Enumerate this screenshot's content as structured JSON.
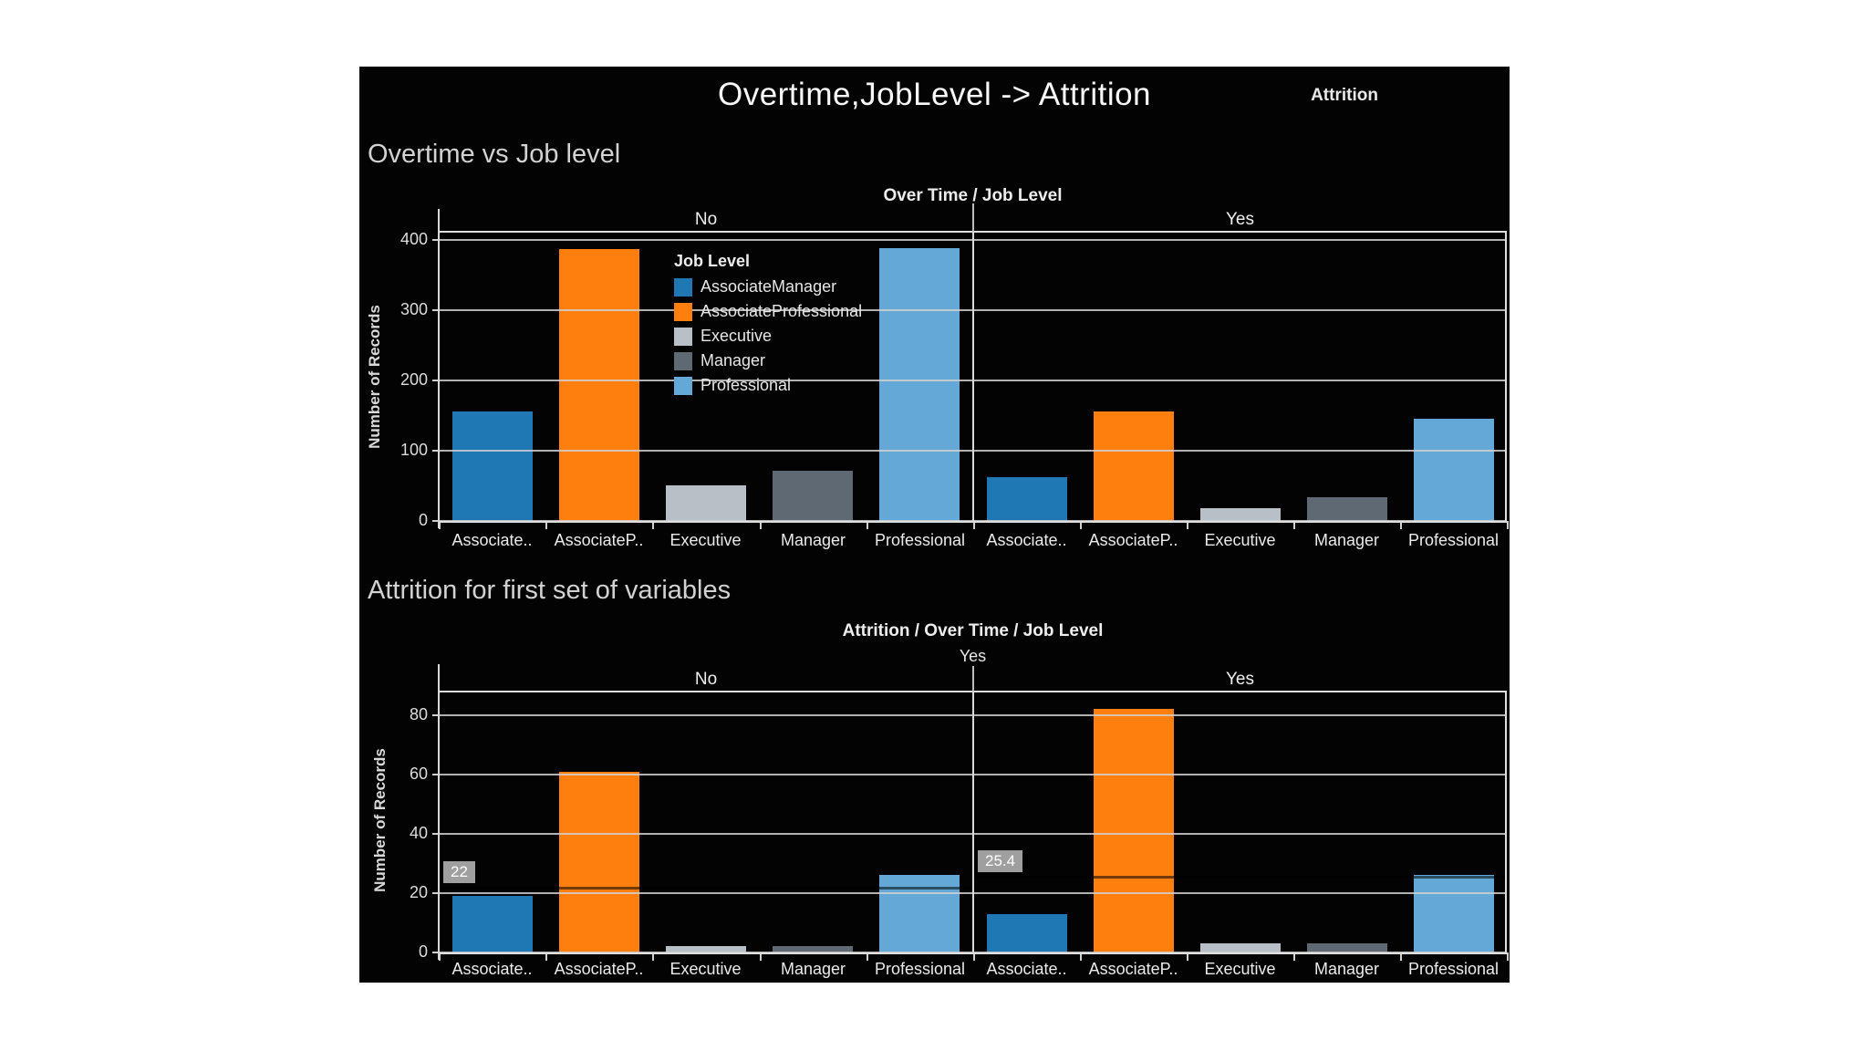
{
  "dashboard": {
    "title": "Overtime,JobLevel -> Attrition",
    "attrition_label": "Attrition"
  },
  "legend": {
    "title": "Job Level",
    "entries": [
      "AssociateManager",
      "AssociateProfessional",
      "Executive",
      "Manager",
      "Professional"
    ]
  },
  "colors": {
    "background": "#030303",
    "gridline": "#d0d0d0",
    "reference_label_bg": "#9f9f9f",
    "AssociateManager": "#1F77B4",
    "AssociateProfessional": "#FF7F0E",
    "Executive": "#B9BFC7",
    "Manager": "#5E6974",
    "Professional": "#63A8D6"
  },
  "chart_data": [
    {
      "type": "bar",
      "title": "Overtime vs Job level",
      "column_header": "Over Time / Job Level",
      "ylabel": "Number of Records",
      "yticks": [
        0,
        100,
        200,
        300,
        400
      ],
      "ylim": [
        0,
        412
      ],
      "grid": true,
      "legend_position": "inside-left-panel",
      "categories": [
        "AssociateManager",
        "AssociateProfessional",
        "Executive",
        "Manager",
        "Professional"
      ],
      "category_tick_labels": [
        "Associate..",
        "AssociateP..",
        "Executive",
        "Manager",
        "Professional"
      ],
      "series_colors": [
        "#1F77B4",
        "#FF7F0E",
        "#B9BFC7",
        "#5E6974",
        "#63A8D6"
      ],
      "panels": [
        {
          "label": "No",
          "values": [
            156,
            387,
            51,
            72,
            388
          ]
        },
        {
          "label": "Yes",
          "values": [
            62,
            156,
            18,
            34,
            146
          ]
        }
      ]
    },
    {
      "type": "bar",
      "title": "Attrition for first set of variables",
      "column_header": "Attrition / Over Time / Job Level",
      "level_label": "Yes",
      "ylabel": "Number of Records",
      "yticks": [
        0,
        20,
        40,
        60,
        80
      ],
      "ylim": [
        0,
        88
      ],
      "grid": true,
      "categories": [
        "AssociateManager",
        "AssociateProfessional",
        "Executive",
        "Manager",
        "Professional"
      ],
      "category_tick_labels": [
        "Associate..",
        "AssociateP..",
        "Executive",
        "Manager",
        "Professional"
      ],
      "series_colors": [
        "#1F77B4",
        "#FF7F0E",
        "#B9BFC7",
        "#5E6974",
        "#63A8D6"
      ],
      "panels": [
        {
          "label": "No",
          "values": [
            19,
            61,
            2,
            2,
            26
          ],
          "reference_line": {
            "value": 22,
            "label": "22"
          }
        },
        {
          "label": "Yes",
          "values": [
            13,
            82,
            3,
            3,
            26
          ],
          "reference_line": {
            "value": 25.4,
            "label": "25.4"
          }
        }
      ]
    }
  ]
}
